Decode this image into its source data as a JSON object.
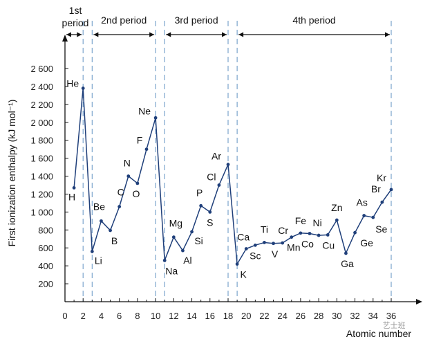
{
  "chart_data": {
    "type": "line",
    "xlabel": "Atomic number",
    "ylabel": "First ionization enthalpy (kJ mol⁻¹)",
    "xlim": [
      0,
      36
    ],
    "ylim": [
      0,
      2600
    ],
    "x_ticks": [
      "0",
      "2",
      "4",
      "6",
      "8",
      "10",
      "12",
      "14",
      "16",
      "18",
      "20",
      "22",
      "24",
      "26",
      "28",
      "30",
      "32",
      "34",
      "36"
    ],
    "y_ticks": [
      "200",
      "400",
      "600",
      "800",
      "1 000",
      "1 200",
      "1 400",
      "1 600",
      "1 800",
      "2 000",
      "2 200",
      "2 400",
      "2 600"
    ],
    "color": "#1f3f7a",
    "boundary_color": "#7aa4cc",
    "period_boundaries": [
      2,
      3,
      10,
      11,
      18,
      19,
      36
    ],
    "periods": [
      {
        "label": "1st\nperiod",
        "from": 0,
        "to": 2
      },
      {
        "label": "2nd period",
        "from": 3,
        "to": 10
      },
      {
        "label": "3rd period",
        "from": 11,
        "to": 18
      },
      {
        "label": "4th period",
        "from": 19,
        "to": 36
      }
    ],
    "points": [
      {
        "z": 1,
        "symbol": "H",
        "value": 1270
      },
      {
        "z": 2,
        "symbol": "He",
        "value": 2380
      },
      {
        "z": 3,
        "symbol": "Li",
        "value": 560
      },
      {
        "z": 4,
        "symbol": "Be",
        "value": 900
      },
      {
        "z": 5,
        "symbol": "B",
        "value": 795
      },
      {
        "z": 6,
        "symbol": "C",
        "value": 1060
      },
      {
        "z": 7,
        "symbol": "N",
        "value": 1400
      },
      {
        "z": 8,
        "symbol": "O",
        "value": 1320
      },
      {
        "z": 9,
        "symbol": "F",
        "value": 1700
      },
      {
        "z": 10,
        "symbol": "Ne",
        "value": 2050
      },
      {
        "z": 11,
        "symbol": "Na",
        "value": 460
      },
      {
        "z": 12,
        "symbol": "Mg",
        "value": 720
      },
      {
        "z": 13,
        "symbol": "Al",
        "value": 570
      },
      {
        "z": 14,
        "symbol": "Si",
        "value": 780
      },
      {
        "z": 15,
        "symbol": "P",
        "value": 1070
      },
      {
        "z": 16,
        "symbol": "S",
        "value": 1000
      },
      {
        "z": 17,
        "symbol": "Cl",
        "value": 1300
      },
      {
        "z": 18,
        "symbol": "Ar",
        "value": 1530
      },
      {
        "z": 19,
        "symbol": "K",
        "value": 420
      },
      {
        "z": 20,
        "symbol": "Ca",
        "value": 590
      },
      {
        "z": 21,
        "symbol": "Sc",
        "value": 630
      },
      {
        "z": 22,
        "symbol": "Ti",
        "value": 660
      },
      {
        "z": 23,
        "symbol": "V",
        "value": 650
      },
      {
        "z": 24,
        "symbol": "Cr",
        "value": 655
      },
      {
        "z": 25,
        "symbol": "Mn",
        "value": 720
      },
      {
        "z": 26,
        "symbol": "Fe",
        "value": 765
      },
      {
        "z": 27,
        "symbol": "Co",
        "value": 760
      },
      {
        "z": 28,
        "symbol": "Ni",
        "value": 740
      },
      {
        "z": 29,
        "symbol": "Cu",
        "value": 745
      },
      {
        "z": 30,
        "symbol": "Zn",
        "value": 910
      },
      {
        "z": 31,
        "symbol": "Ga",
        "value": 540
      },
      {
        "z": 32,
        "symbol": "Ge",
        "value": 770
      },
      {
        "z": 33,
        "symbol": "As",
        "value": 960
      },
      {
        "z": 34,
        "symbol": "Se",
        "value": 940
      },
      {
        "z": 35,
        "symbol": "Br",
        "value": 1110
      },
      {
        "z": 36,
        "symbol": "Kr",
        "value": 1250
      }
    ]
  },
  "watermark": "艺士班"
}
